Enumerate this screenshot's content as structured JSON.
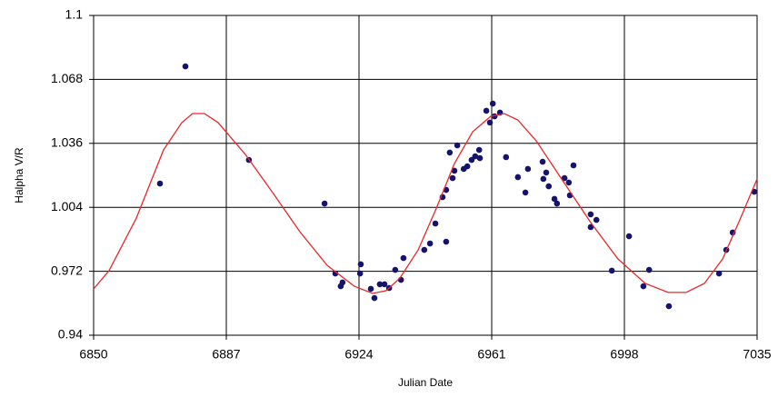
{
  "chart_data": {
    "type": "scatter",
    "x_label": "Julian Date",
    "y_label": "Halpha V/R",
    "xlim": [
      6850,
      7035
    ],
    "xticks": [
      6850,
      6887,
      6924,
      6961,
      6998,
      7035
    ],
    "ylim": [
      0.94,
      1.1
    ],
    "yticks": [
      0.94,
      0.972,
      1.004,
      1.036,
      1.068,
      1.1
    ],
    "grid": true,
    "series": [
      {
        "mode": "markers",
        "color": "#14146e",
        "x": [
          6868.5,
          6875.6,
          6893.3,
          6914.4,
          6917.4,
          6918.9,
          6919.4,
          6924.5,
          6924.3,
          6927.3,
          6928.3,
          6929.8,
          6931.1,
          6932.4,
          6934.1,
          6935.7,
          6936.4,
          6942.2,
          6943.8,
          6945.3,
          6947.3,
          6948.3,
          6948.3,
          6949.3,
          6950.1,
          6950.6,
          6951.4,
          6953.2,
          6954.2,
          6955.4,
          6956.4,
          6957.5,
          6957.7,
          6959.5,
          6960.5,
          6961.3,
          6961.8,
          6963.3,
          6965.0,
          6968.3,
          6970.4,
          6971.1,
          6975.2,
          6975.4,
          6976.2,
          6976.9,
          6978.5,
          6979.2,
          6981.3,
          6982.5,
          6982.8,
          6983.8,
          6988.6,
          6988.6,
          6990.2,
          6994.5,
          6999.3,
          7003.3,
          7004.9,
          7010.4,
          7024.4,
          7026.4,
          7028.2,
          7034.2
        ],
        "values": [
          1.0159,
          1.0745,
          1.0277,
          1.0059,
          0.9709,
          0.9645,
          0.9664,
          0.9755,
          0.9709,
          0.9632,
          0.9586,
          0.9655,
          0.9655,
          0.9636,
          0.9727,
          0.9677,
          0.9786,
          0.9827,
          0.9859,
          0.9959,
          1.0091,
          1.0127,
          0.9868,
          1.0314,
          1.0186,
          1.0223,
          1.035,
          1.0232,
          1.0245,
          1.0277,
          1.0295,
          1.0327,
          1.0286,
          1.0523,
          1.0464,
          1.0559,
          1.0495,
          1.0514,
          1.0291,
          1.0191,
          1.0114,
          1.0232,
          1.0268,
          1.0182,
          1.0214,
          1.0145,
          1.0082,
          1.0059,
          1.0186,
          1.0164,
          1.01,
          1.025,
          1.0005,
          0.9941,
          0.9977,
          0.9723,
          0.9895,
          0.9645,
          0.9727,
          0.9545,
          0.9709,
          0.9827,
          0.9914,
          1.0118
        ]
      },
      {
        "mode": "line",
        "color": "#e8272a",
        "x": [
          6850,
          6854.3,
          6861.9,
          6869.5,
          6874.6,
          6877.6,
          6880.9,
          6884.7,
          6892.3,
          6899.9,
          6907.5,
          6915.1,
          6922.7,
          6927.8,
          6931.6,
          6935.4,
          6940.5,
          6945.5,
          6950.6,
          6955.7,
          6960.7,
          6964.5,
          6968.3,
          6973.4,
          6981.0,
          6988.6,
          6996.2,
          7003.8,
          7010.2,
          7015.2,
          7020.3,
          7025.4,
          7030.4,
          7035
        ],
        "values": [
          0.9632,
          0.9723,
          0.9986,
          1.0327,
          1.0464,
          1.0509,
          1.0509,
          1.0464,
          1.0305,
          1.0114,
          0.9918,
          0.975,
          0.9645,
          0.9609,
          0.9623,
          0.9686,
          0.9827,
          1.0032,
          1.0259,
          1.0418,
          1.0495,
          1.0509,
          1.0477,
          1.0373,
          1.0168,
          0.9964,
          0.9782,
          0.9659,
          0.9614,
          0.9614,
          0.9659,
          0.9782,
          0.9986,
          1.0182
        ]
      }
    ]
  }
}
